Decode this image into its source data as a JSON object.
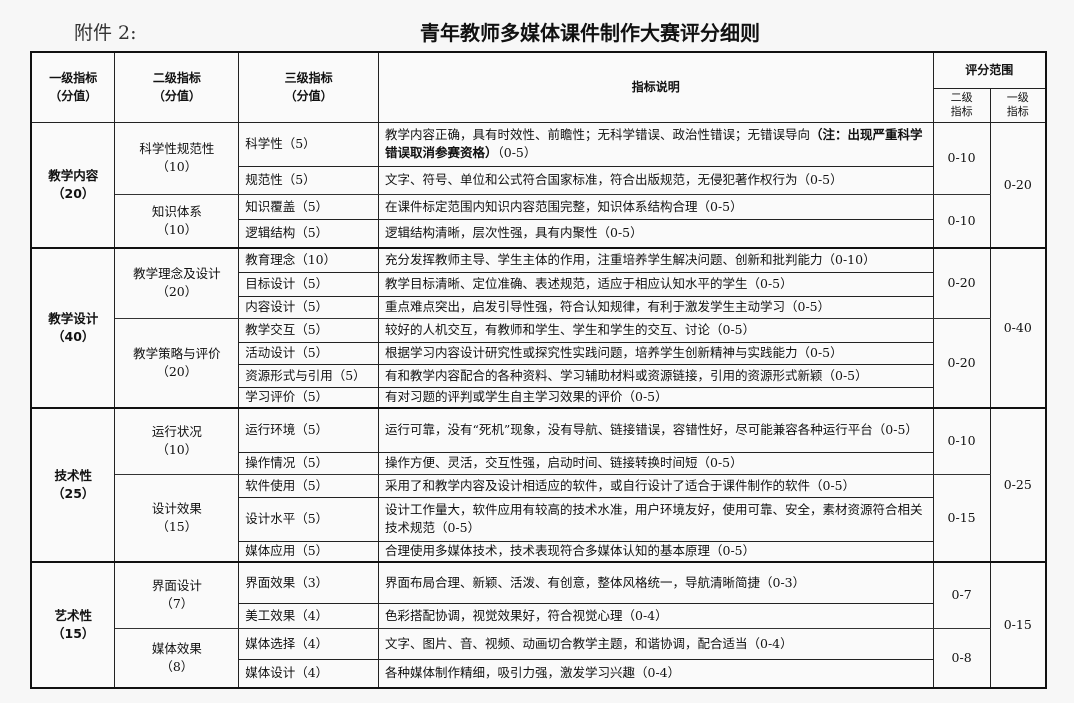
{
  "attachment_label": "附件 2:",
  "title": "青年教师多媒体课件制作大赛评分细则",
  "header": {
    "level1": [
      "一级指标",
      "（分值）"
    ],
    "level2": [
      "二级指标",
      "（分值）"
    ],
    "level3": [
      "三级指标",
      "（分值）"
    ],
    "description": "指标说明",
    "score_range": "评分范围",
    "range_level2": [
      "二级",
      "指标"
    ],
    "range_level1": [
      "一级",
      "指标"
    ]
  },
  "groups": [
    {
      "name": "教学内容",
      "score": "（20）",
      "range": "0-20",
      "subgroups": [
        {
          "name": "科学性规范性",
          "score": "（10）",
          "range": "0-10",
          "items": [
            {
              "name": "科学性（5）",
              "desc": "教学内容正确，具有时效性、前瞻性；无科学错误、政治性错误；无错误导向",
              "desc_bold": "（注：出现严重科学错误取消参赛资格）",
              "desc_tail": "（0-5）"
            },
            {
              "name": "规范性（5）",
              "desc": "文字、符号、单位和公式符合国家标准，符合出版规范，无侵犯著作权行为（0-5）"
            }
          ]
        },
        {
          "name": "知识体系",
          "score": "（10）",
          "range": "0-10",
          "items": [
            {
              "name": "知识覆盖（5）",
              "desc": "在课件标定范围内知识内容范围完整，知识体系结构合理（0-5）"
            },
            {
              "name": "逻辑结构（5）",
              "desc": "逻辑结构清晰，层次性强，具有内聚性（0-5）"
            }
          ]
        }
      ]
    },
    {
      "name": "教学设计",
      "score": "（40）",
      "range": "0-40",
      "subgroups": [
        {
          "name": "教学理念及设计",
          "score": "（20）",
          "range": "0-20",
          "items": [
            {
              "name": "教育理念（10）",
              "desc": "充分发挥教师主导、学生主体的作用，注重培养学生解决问题、创新和批判能力（0-10）"
            },
            {
              "name": "目标设计（5）",
              "desc": "教学目标清晰、定位准确、表述规范，适应于相应认知水平的学生（0-5）"
            },
            {
              "name": "内容设计（5）",
              "desc": "重点难点突出，启发引导性强，符合认知规律，有利于激发学生主动学习（0-5）"
            }
          ]
        },
        {
          "name": "教学策略与评价",
          "score": "（20）",
          "range": "0-20",
          "items": [
            {
              "name": "教学交互（5）",
              "desc": "较好的人机交互，有教师和学生、学生和学生的交互、讨论（0-5）"
            },
            {
              "name": "活动设计（5）",
              "desc": "根据学习内容设计研究性或探究性实践问题，培养学生创新精神与实践能力（0-5）"
            },
            {
              "name": "资源形式与引用（5）",
              "desc": "有和教学内容配合的各种资料、学习辅助材料或资源链接，引用的资源形式新颖（0-5）"
            },
            {
              "name": "学习评价（5）",
              "desc": "有对习题的评判或学生自主学习效果的评价（0-5）"
            }
          ]
        }
      ]
    },
    {
      "name": "技术性",
      "score": "（25）",
      "range": "0-25",
      "subgroups": [
        {
          "name": "运行状况",
          "score": "（10）",
          "range": "0-10",
          "items": [
            {
              "name": "运行环境（5）",
              "desc": "运行可靠，没有“死机”现象，没有导航、链接错误，容错性好，尽可能兼容各种运行平台（0-5）"
            },
            {
              "name": "操作情况（5）",
              "desc": "操作方便、灵活，交互性强，启动时间、链接转换时间短（0-5）"
            }
          ]
        },
        {
          "name": "设计效果",
          "score": "（15）",
          "range": "0-15",
          "items": [
            {
              "name": "软件使用（5）",
              "desc": "采用了和教学内容及设计相适应的软件，或自行设计了适合于课件制作的软件（0-5）"
            },
            {
              "name": "设计水平（5）",
              "desc": "设计工作量大，软件应用有较高的技术水准，用户环境友好，使用可靠、安全，素材资源符合相关技术规范（0-5）"
            },
            {
              "name": "媒体应用（5）",
              "desc": "合理使用多媒体技术，技术表现符合多媒体认知的基本原理（0-5）"
            }
          ]
        }
      ]
    },
    {
      "name": "艺术性",
      "score": "（15）",
      "range": "0-15",
      "subgroups": [
        {
          "name": "界面设计",
          "score": "（7）",
          "range": "0-7",
          "items": [
            {
              "name": "界面效果（3）",
              "desc": "界面布局合理、新颖、活泼、有创意，整体风格统一，导航清晰简捷（0-3）"
            },
            {
              "name": "美工效果（4）",
              "desc": "色彩搭配协调，视觉效果好，符合视觉心理（0-4）"
            }
          ]
        },
        {
          "name": "媒体效果",
          "score": "（8）",
          "range": "0-8",
          "items": [
            {
              "name": "媒体选择（4）",
              "desc": "文字、图片、音、视频、动画切合教学主题，和谐协调，配合适当（0-4）"
            },
            {
              "name": "媒体设计（4）",
              "desc": "各种媒体制作精细，吸引力强，激发学习兴趣（0-4）"
            }
          ]
        }
      ]
    }
  ]
}
